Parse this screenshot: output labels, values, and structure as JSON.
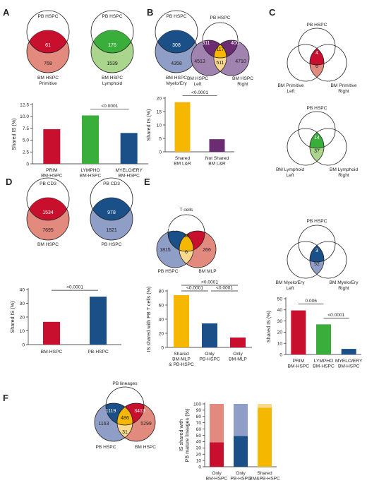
{
  "colors": {
    "red": "#c8102e",
    "red_light": "#e38a7e",
    "green": "#3aae3a",
    "green_light": "#a9d58d",
    "blue": "#1a4f87",
    "blue_light": "#8f9ec6",
    "yellow": "#f6b700",
    "yellow_light": "#fbd98f",
    "purple": "#6b2c72",
    "purple_light": "#a183b0"
  },
  "panels": {
    "A": {
      "letter": "A",
      "venns": [
        {
          "top": "PB HSPC",
          "bottom": "BM HSPC\nPrimitive",
          "overlap": "61",
          "rest": "768"
        },
        {
          "top": "PB HSPC",
          "bottom": "BM HSPC\nLymphoid",
          "overlap": "176",
          "rest": "1539"
        },
        {
          "top": "PB HSPC",
          "bottom": "BM HSPC\nMyelo/Ery",
          "overlap": "308",
          "rest": "4358"
        }
      ]
    },
    "B": {
      "letter": "B",
      "venn": {
        "top": "PB HSPC",
        "left": "BM HSPC\nLeft",
        "right": "BM HSPC\nRight",
        "top_left": "311",
        "top_right": "400",
        "center": "117",
        "bottom_mid": "511",
        "left_only": "4513",
        "right_only": "4710"
      }
    },
    "C": {
      "letter": "C",
      "venns": [
        {
          "top": "PB HSPC",
          "left": "BM Primitive\nLeft",
          "right": "BM Primitive\nRight",
          "center": "4",
          "bottom": "6"
        },
        {
          "top": "PB HSPC",
          "left": "BM Lymphoid\nLeft",
          "right": "BM Lymphoid\nRight",
          "center": "14",
          "bottom": "37"
        },
        {
          "top": "PB HSPC",
          "left": "BM Myelo/Ery\nLeft",
          "right": "BM Myelo/Ery\nRight",
          "center": "3",
          "bottom": "52"
        }
      ]
    },
    "D": {
      "letter": "D",
      "venns": [
        {
          "top": "PB CD3",
          "bottom": "BM HSPC",
          "overlap": "1534",
          "rest": "7695"
        },
        {
          "top": "PB CD3",
          "bottom": "PB HSPC",
          "overlap": "978",
          "rest": "1821"
        }
      ]
    },
    "E": {
      "letter": "E",
      "venn": {
        "top": "T cells",
        "left": "PB HSPC",
        "right": "BM MLP",
        "top_left": "960",
        "top_right": "46",
        "center": "18",
        "bottom_mid": "6",
        "left_only": "1815",
        "right_only": "266"
      }
    },
    "F": {
      "letter": "F",
      "venn": {
        "top": "PB lineages",
        "left": "PB HSPC",
        "right": "BM HSPC",
        "top_left": "1119",
        "top_right": "3413",
        "center": "486",
        "bottom_mid": "31",
        "left_only": "1163",
        "right_only": "5299"
      }
    }
  },
  "chart_data": [
    {
      "id": "A",
      "type": "bar",
      "categories": [
        "PRIM\nBM-HSPC",
        "LYMPHO\nBM-HSPC",
        "MYELO/ERY\nBM-HSPC"
      ],
      "values": [
        7.3,
        10.2,
        6.5
      ],
      "colors": [
        "#c8102e",
        "#3aae3a",
        "#1a4f87"
      ],
      "ylabel": "Shared IS (%)",
      "ylim": [
        0,
        12.5
      ],
      "yticks": [
        "0",
        "2.5",
        "5.0",
        "7.5",
        "10.0",
        "12.5"
      ],
      "annotations": [
        {
          "from": 1,
          "to": 2,
          "text": "<0.0001"
        }
      ]
    },
    {
      "id": "B",
      "type": "bar",
      "categories": [
        "Shared\nBM L&R",
        "Not Shared\nBM L&R"
      ],
      "values": [
        18.5,
        4.7
      ],
      "colors": [
        "#f6b700",
        "#6b2c72"
      ],
      "ylabel": "Shared IS (%)",
      "ylim": [
        0,
        20
      ],
      "yticks": [
        "0",
        "5",
        "10",
        "15",
        "20"
      ],
      "annotations": [
        {
          "from": 0,
          "to": 1,
          "text": "<0.0001"
        }
      ]
    },
    {
      "id": "D",
      "type": "bar",
      "categories": [
        "BM-HSPC",
        "PB-HSPC"
      ],
      "values": [
        16.5,
        34.8
      ],
      "colors": [
        "#c8102e",
        "#1a4f87"
      ],
      "ylabel": "Shared IS (%)",
      "ylim": [
        0,
        40
      ],
      "yticks": [
        "0",
        "10",
        "20",
        "30",
        "40"
      ],
      "annotations": [
        {
          "from": 0,
          "to": 1,
          "text": "<0.0001"
        }
      ]
    },
    {
      "id": "E",
      "type": "bar",
      "categories": [
        "Shared\nBM-MLP\n& PB-HSPC",
        "Only\nPB-HSPC",
        "Only\nBM-MLP"
      ],
      "values": [
        74,
        34,
        14
      ],
      "colors": [
        "#f6b700",
        "#1a4f87",
        "#c8102e"
      ],
      "ylabel": "IS shared with PB T cells (%)",
      "ylim": [
        0,
        80
      ],
      "yticks": [
        "0",
        "20",
        "40",
        "60",
        "80"
      ],
      "annotations": [
        {
          "from": 0,
          "to": 2,
          "text": "<0.0001"
        },
        {
          "from": 0,
          "to": 1,
          "text": "<0.0001"
        },
        {
          "from": 1,
          "to": 2,
          "text": "<0.0001"
        }
      ]
    },
    {
      "id": "C",
      "type": "bar",
      "categories": [
        "PRIM\nBM-HSPC",
        "LYMPHO\nBM-HSPC",
        "MYELO/ERY\nBM-HSPC"
      ],
      "values": [
        39.5,
        27,
        5
      ],
      "colors": [
        "#c8102e",
        "#3aae3a",
        "#1a4f87"
      ],
      "ylabel": "Shared IS (%)",
      "ylim": [
        0,
        50
      ],
      "yticks": [
        "0",
        "10",
        "20",
        "30",
        "40",
        "50"
      ],
      "annotations": [
        {
          "from": 0,
          "to": 1,
          "text": "0.006"
        },
        {
          "from": 1,
          "to": 2,
          "text": "<0.0001"
        }
      ]
    },
    {
      "id": "F",
      "type": "stacked-bar",
      "categories": [
        "Only\nBM-HSPC",
        "Only\nPB-HSPC",
        "Shared\nBM&PB-HSPC"
      ],
      "series": [
        {
          "values": [
            39,
            49,
            94
          ],
          "colors": [
            "#c8102e",
            "#1a4f87",
            "#f6b700"
          ]
        },
        {
          "values": [
            61,
            51,
            6
          ],
          "colors": [
            "#e38a7e",
            "#8f9ec6",
            "#fbd98f"
          ]
        }
      ],
      "ylabel": "IS shared with\nPB mature lineages (%)",
      "ylim": [
        0,
        100
      ],
      "yticks": [
        "0",
        "10",
        "20",
        "30",
        "40",
        "50",
        "60",
        "70",
        "80",
        "90",
        "100"
      ]
    }
  ]
}
